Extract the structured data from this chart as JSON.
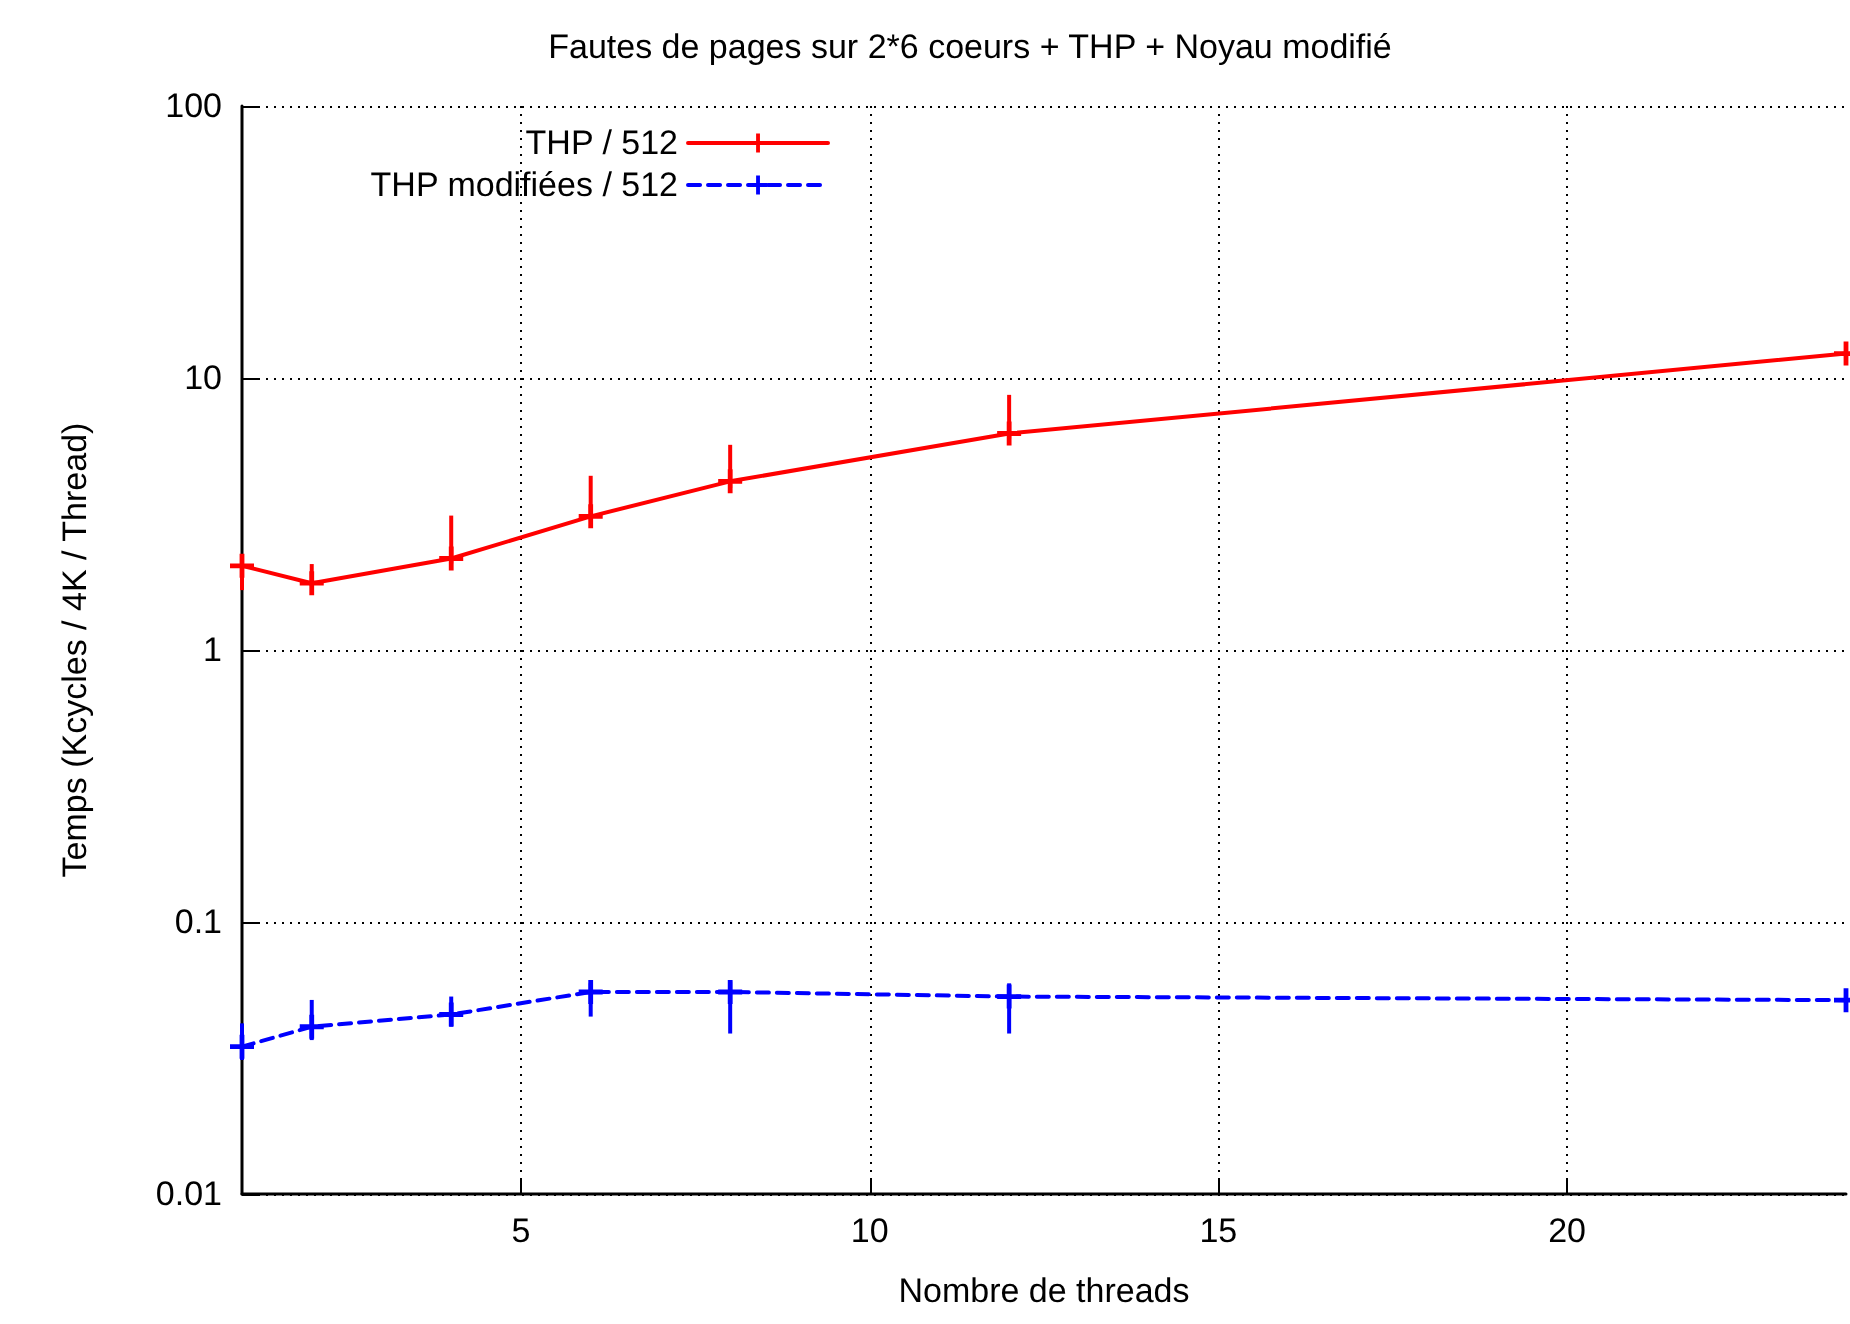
{
  "chart_data": {
    "type": "line",
    "title": "Fautes de pages sur 2*6 coeurs + THP + Noyau modifié",
    "xlabel": "Nombre de threads",
    "ylabel": "Temps (Kcycles / 4K / Thread)",
    "log": "y",
    "xlim": [
      1,
      24
    ],
    "xticks": [
      5,
      10,
      15,
      20
    ],
    "ylim": [
      0.01,
      100
    ],
    "yticks": [
      0.01,
      0.1,
      1,
      10,
      100
    ],
    "grid": true,
    "legend": "top left",
    "marker": "cross",
    "x": [
      1,
      2,
      4,
      6,
      8,
      12,
      24
    ],
    "series": [
      {
        "name": "THP / 512",
        "color": "#ff0000",
        "line_style": "solid",
        "values": [
          2.04,
          1.76,
          2.17,
          3.1,
          4.17,
          6.25,
          12.3
        ],
        "errors": [
          [
            1.66,
            2.14
          ],
          [
            1.72,
            2.07
          ],
          [
            2.08,
            3.12
          ],
          [
            3.0,
            4.37
          ],
          [
            3.94,
            5.68
          ],
          [
            5.98,
            8.67
          ],
          null
        ]
      },
      {
        "name": "THP modifiées / 512",
        "color": "#0000ff",
        "line_style": "dashed",
        "values": [
          0.0348,
          0.0412,
          0.0457,
          0.0553,
          0.0553,
          0.0532,
          0.0516
        ],
        "errors": [
          [
            0.0311,
            0.0424
          ],
          [
            0.0368,
            0.0517
          ],
          [
            0.0412,
            0.0532
          ],
          [
            0.0449,
            0.0595
          ],
          [
            0.0389,
            0.0605
          ],
          [
            0.0389,
            0.0595
          ],
          null
        ]
      }
    ]
  }
}
